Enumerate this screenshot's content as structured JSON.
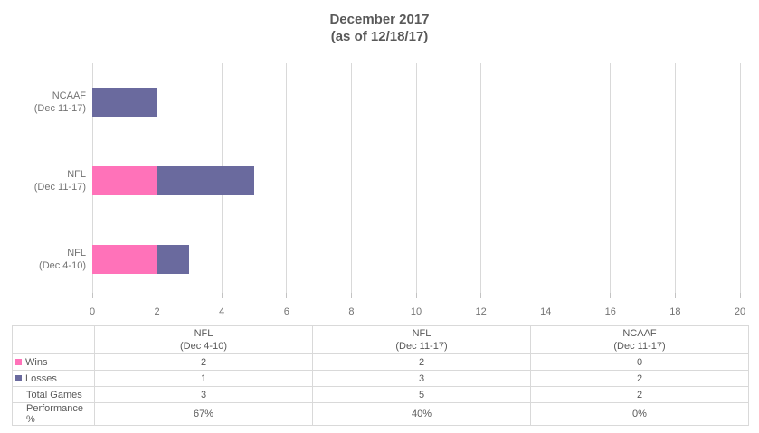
{
  "title": {
    "line1": "December 2017",
    "line2": "(as of 12/18/17)"
  },
  "colors": {
    "wins": "#ff72b9",
    "losses": "#6a6a9e",
    "gridline": "#d9d9d9",
    "table_border": "#d9d9d9",
    "title_text": "#595959",
    "axis_text": "#737373",
    "table_text": "#595959"
  },
  "chart_data": {
    "type": "bar",
    "orientation": "horizontal",
    "stacked": true,
    "title": "December 2017 (as of 12/18/17)",
    "xlabel": "",
    "ylabel": "",
    "xlim": [
      0,
      20
    ],
    "xticks": [
      0,
      2,
      4,
      6,
      8,
      10,
      12,
      14,
      16,
      18,
      20
    ],
    "grid": "vertical",
    "categories": [
      "NCAAF (Dec 11-17)",
      "NFL (Dec 11-17)",
      "NFL (Dec 4-10)"
    ],
    "series": [
      {
        "name": "Wins",
        "color": "#ff72b9",
        "values": [
          0,
          2,
          2
        ]
      },
      {
        "name": "Losses",
        "color": "#6a6a9e",
        "values": [
          2,
          3,
          1
        ]
      }
    ],
    "rows": [
      {
        "label1": "NCAAF",
        "label2": "(Dec 11-17)",
        "segments": [
          0,
          2
        ]
      },
      {
        "label1": "NFL",
        "label2": "(Dec 11-17)",
        "segments": [
          2,
          3
        ]
      },
      {
        "label1": "NFL",
        "label2": "(Dec 4-10)",
        "segments": [
          2,
          1
        ]
      }
    ]
  },
  "table": {
    "columns": [
      {
        "line1": "NFL",
        "line2": "(Dec 4-10)"
      },
      {
        "line1": "NFL",
        "line2": "(Dec 11-17)"
      },
      {
        "line1": "NCAAF",
        "line2": "(Dec 11-17)"
      }
    ],
    "rows": [
      {
        "label": "Wins",
        "swatch": "#ff72b9",
        "values": [
          "2",
          "2",
          "0"
        ]
      },
      {
        "label": "Losses",
        "swatch": "#6a6a9e",
        "values": [
          "1",
          "3",
          "2"
        ]
      },
      {
        "label": "Total Games",
        "swatch": null,
        "values": [
          "3",
          "5",
          "2"
        ]
      },
      {
        "label": "Performance %",
        "swatch": null,
        "values": [
          "67%",
          "40%",
          "0%"
        ]
      }
    ]
  }
}
